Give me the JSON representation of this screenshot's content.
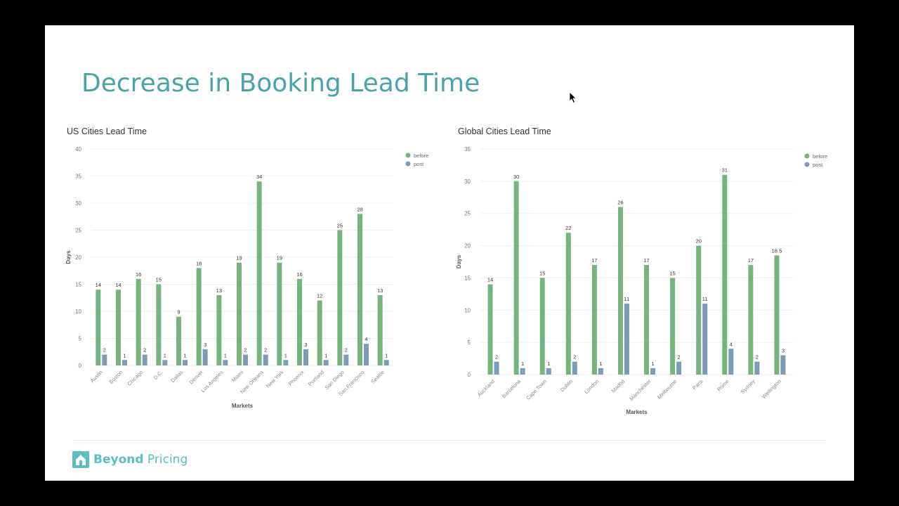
{
  "slide": {
    "title": "Decrease in Booking Lead Time",
    "logo": {
      "brand_bold": "Beyond",
      "brand_light": " Pricing",
      "icon": "house-icon"
    }
  },
  "colors": {
    "before": "#78b27e",
    "post": "#7c9cb6",
    "title": "#4aa3a6",
    "logo": "#5bbec0"
  },
  "chart_data": [
    {
      "type": "bar",
      "title": "US Cities Lead Time",
      "xlabel": "Markets",
      "ylabel": "Days",
      "ylim": [
        0,
        40
      ],
      "yticks": [
        0,
        5,
        10,
        15,
        20,
        25,
        30,
        35,
        40
      ],
      "grid": true,
      "legend_position": "top-right",
      "categories": [
        "Austin",
        "Boston",
        "Chicago",
        "D.C.",
        "Dallas",
        "Denver",
        "Los Angeles",
        "Miami",
        "New Orleans",
        "New York",
        "Phoenix",
        "Portland",
        "San Diego",
        "San Francisco",
        "Seattle"
      ],
      "series": [
        {
          "name": "before",
          "values": [
            14,
            14,
            16,
            15,
            9,
            18,
            13,
            19,
            34,
            19,
            16,
            12,
            25,
            28,
            13
          ]
        },
        {
          "name": "post",
          "values": [
            2,
            1,
            2,
            1,
            1,
            3,
            1,
            2,
            2,
            1,
            3,
            1,
            2,
            4,
            1
          ]
        }
      ]
    },
    {
      "type": "bar",
      "title": "Global Cities Lead Time",
      "xlabel": "Markets",
      "ylabel": "Days",
      "ylim": [
        0,
        35
      ],
      "yticks": [
        0,
        5,
        10,
        15,
        20,
        25,
        30,
        35
      ],
      "grid": true,
      "legend_position": "top-right",
      "categories": [
        "Auckland",
        "Barcelona",
        "Cape Town",
        "Dublin",
        "London",
        "Madrid",
        "Manchester",
        "Melbourne",
        "Paris",
        "Rome",
        "Sydney",
        "Wellington"
      ],
      "series": [
        {
          "name": "before",
          "values": [
            14,
            30,
            15,
            22,
            17,
            26,
            17,
            15,
            20,
            31,
            17,
            18.5
          ]
        },
        {
          "name": "post",
          "values": [
            2,
            1,
            1,
            2,
            1,
            11,
            1,
            2,
            11,
            4,
            2,
            3
          ]
        }
      ]
    }
  ]
}
